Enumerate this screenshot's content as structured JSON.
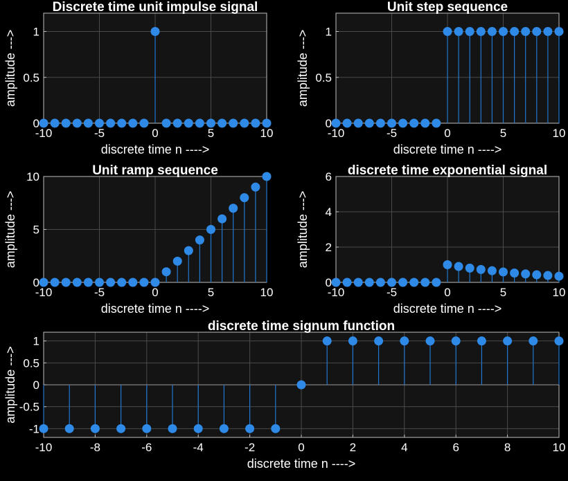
{
  "figure": {
    "background": "#000000",
    "axes_background": "#141414",
    "stem_color": "#1f77d0",
    "marker_color": "#2e8ae6"
  },
  "chart_data": [
    {
      "id": "impulse",
      "type": "stem",
      "title": "Discrete time unit impulse signal",
      "xlabel": "discrete time n ---->",
      "ylabel": "amplitude --->",
      "xlim": [
        -10,
        10
      ],
      "ylim": [
        0,
        1.2
      ],
      "xticks": [
        -10,
        -5,
        0,
        5,
        10
      ],
      "xticklabels": [
        "-10",
        "-5",
        "0",
        "5",
        "10"
      ],
      "yticks": [
        0,
        0.5,
        1
      ],
      "yticklabels": [
        "0",
        "0.5",
        "1"
      ],
      "grid": true,
      "x": [
        -10,
        -9,
        -8,
        -7,
        -6,
        -5,
        -4,
        -3,
        -2,
        -1,
        0,
        1,
        2,
        3,
        4,
        5,
        6,
        7,
        8,
        9,
        10
      ],
      "y": [
        0,
        0,
        0,
        0,
        0,
        0,
        0,
        0,
        0,
        0,
        1,
        0,
        0,
        0,
        0,
        0,
        0,
        0,
        0,
        0,
        0
      ]
    },
    {
      "id": "step",
      "type": "stem",
      "title": "Unit step sequence",
      "xlabel": "discrete time n ---->",
      "ylabel": "amplitude --->",
      "xlim": [
        -10,
        10
      ],
      "ylim": [
        0,
        1.2
      ],
      "xticks": [
        -10,
        -5,
        0,
        5,
        10
      ],
      "xticklabels": [
        "-10",
        "-5",
        "0",
        "5",
        "10"
      ],
      "yticks": [
        0,
        0.5,
        1
      ],
      "yticklabels": [
        "0",
        "0.5",
        "1"
      ],
      "grid": true,
      "x": [
        -10,
        -9,
        -8,
        -7,
        -6,
        -5,
        -4,
        -3,
        -2,
        -1,
        0,
        1,
        2,
        3,
        4,
        5,
        6,
        7,
        8,
        9,
        10
      ],
      "y": [
        0,
        0,
        0,
        0,
        0,
        0,
        0,
        0,
        0,
        0,
        1,
        1,
        1,
        1,
        1,
        1,
        1,
        1,
        1,
        1,
        1
      ]
    },
    {
      "id": "ramp",
      "type": "stem",
      "title": "Unit ramp sequence",
      "xlabel": "discrete time n ---->",
      "ylabel": "amplitude --->",
      "xlim": [
        -10,
        10
      ],
      "ylim": [
        0,
        10
      ],
      "xticks": [
        -10,
        -5,
        0,
        5,
        10
      ],
      "xticklabels": [
        "-10",
        "-5",
        "0",
        "5",
        "10"
      ],
      "yticks": [
        0,
        5,
        10
      ],
      "yticklabels": [
        "0",
        "5",
        "10"
      ],
      "grid": true,
      "x": [
        -10,
        -9,
        -8,
        -7,
        -6,
        -5,
        -4,
        -3,
        -2,
        -1,
        0,
        1,
        2,
        3,
        4,
        5,
        6,
        7,
        8,
        9,
        10
      ],
      "y": [
        0,
        0,
        0,
        0,
        0,
        0,
        0,
        0,
        0,
        0,
        0,
        1,
        2,
        3,
        4,
        5,
        6,
        7,
        8,
        9,
        10
      ]
    },
    {
      "id": "exponential",
      "type": "stem",
      "title": "discrete time exponential signal",
      "xlabel": "discrete time n ---->",
      "ylabel": "amplitude --->",
      "xlim": [
        -10,
        10
      ],
      "ylim": [
        0,
        6
      ],
      "xticks": [
        -10,
        -5,
        0,
        5,
        10
      ],
      "xticklabels": [
        "-10",
        "-5",
        "0",
        "5",
        "10"
      ],
      "yticks": [
        0,
        2,
        4,
        6
      ],
      "yticklabels": [
        "0",
        "2",
        "4",
        "6"
      ],
      "grid": true,
      "x": [
        -10,
        -9,
        -8,
        -7,
        -6,
        -5,
        -4,
        -3,
        -2,
        -1,
        0,
        1,
        2,
        3,
        4,
        5,
        6,
        7,
        8,
        9,
        10
      ],
      "y": [
        0,
        0,
        0,
        0,
        0,
        0,
        0,
        0,
        0,
        0,
        1,
        0.9,
        0.81,
        0.73,
        0.66,
        0.59,
        0.53,
        0.48,
        0.43,
        0.39,
        0.35
      ]
    },
    {
      "id": "signum",
      "type": "stem",
      "title": "discrete time signum function",
      "xlabel": "discrete time n ---->",
      "ylabel": "amplitude --->",
      "xlim": [
        -10,
        10
      ],
      "ylim": [
        -1.2,
        1.2
      ],
      "xticks": [
        -10,
        -8,
        -6,
        -4,
        -2,
        0,
        2,
        4,
        6,
        8,
        10
      ],
      "xticklabels": [
        "-10",
        "-8",
        "-6",
        "-4",
        "-2",
        "0",
        "2",
        "4",
        "6",
        "8",
        "10"
      ],
      "yticks": [
        -1,
        -0.5,
        0,
        0.5,
        1
      ],
      "yticklabels": [
        "-1",
        "-0.5",
        "0",
        "0.5",
        "1"
      ],
      "grid": true,
      "x": [
        -10,
        -9,
        -8,
        -7,
        -6,
        -5,
        -4,
        -3,
        -2,
        -1,
        0,
        1,
        2,
        3,
        4,
        5,
        6,
        7,
        8,
        9,
        10
      ],
      "y": [
        -1,
        -1,
        -1,
        -1,
        -1,
        -1,
        -1,
        -1,
        -1,
        -1,
        0,
        1,
        1,
        1,
        1,
        1,
        1,
        1,
        1,
        1,
        1
      ]
    }
  ]
}
